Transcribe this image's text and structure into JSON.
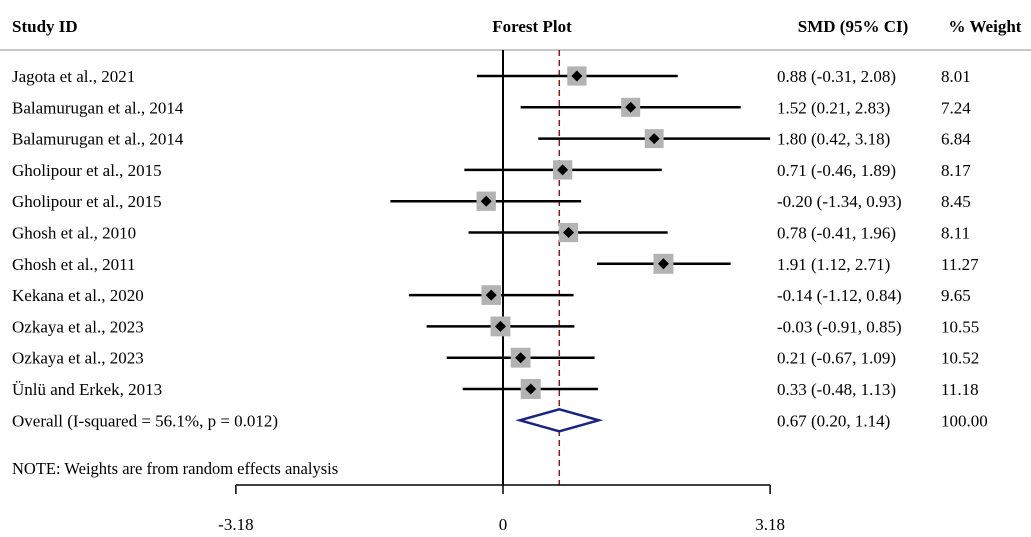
{
  "headers": {
    "study": "Study ID",
    "plot": "Forest Plot",
    "smd": "SMD (95% CI)",
    "weight": "% Weight"
  },
  "note": "NOTE: Weights are from random effects analysis",
  "chart_data": {
    "type": "forest",
    "xticks": [
      -3.18,
      0,
      3.18
    ],
    "xtick_labels": [
      "-3.18",
      "0",
      "3.18"
    ],
    "null_line": 0,
    "studies": [
      {
        "label": "Jagota et al., 2021",
        "smd": 0.88,
        "lo": -0.31,
        "hi": 2.08,
        "ci_text": "0.88 (-0.31, 2.08)",
        "weight": 8.01,
        "weight_text": "8.01"
      },
      {
        "label": "Balamurugan et al., 2014",
        "smd": 1.52,
        "lo": 0.21,
        "hi": 2.83,
        "ci_text": "1.52 (0.21, 2.83)",
        "weight": 7.24,
        "weight_text": "7.24"
      },
      {
        "label": "Balamurugan et al., 2014",
        "smd": 1.8,
        "lo": 0.42,
        "hi": 3.18,
        "ci_text": "1.80 (0.42, 3.18)",
        "weight": 6.84,
        "weight_text": "6.84"
      },
      {
        "label": "Gholipour et al., 2015",
        "smd": 0.71,
        "lo": -0.46,
        "hi": 1.89,
        "ci_text": "0.71 (-0.46, 1.89)",
        "weight": 8.17,
        "weight_text": "8.17"
      },
      {
        "label": "Gholipour et al., 2015",
        "smd": -0.2,
        "lo": -1.34,
        "hi": 0.93,
        "ci_text": "-0.20 (-1.34, 0.93)",
        "weight": 8.45,
        "weight_text": "8.45"
      },
      {
        "label": "Ghosh et al., 2010",
        "smd": 0.78,
        "lo": -0.41,
        "hi": 1.96,
        "ci_text": "0.78 (-0.41, 1.96)",
        "weight": 8.11,
        "weight_text": "8.11"
      },
      {
        "label": "Ghosh et al., 2011",
        "smd": 1.91,
        "lo": 1.12,
        "hi": 2.71,
        "ci_text": "1.91 (1.12, 2.71)",
        "weight": 11.27,
        "weight_text": "11.27"
      },
      {
        "label": "Kekana et al., 2020",
        "smd": -0.14,
        "lo": -1.12,
        "hi": 0.84,
        "ci_text": "-0.14 (-1.12, 0.84)",
        "weight": 9.65,
        "weight_text": "9.65"
      },
      {
        "label": "Ozkaya et al., 2023",
        "smd": -0.03,
        "lo": -0.91,
        "hi": 0.85,
        "ci_text": "-0.03 (-0.91, 0.85)",
        "weight": 10.55,
        "weight_text": "10.55"
      },
      {
        "label": "Ozkaya et al., 2023",
        "smd": 0.21,
        "lo": -0.67,
        "hi": 1.09,
        "ci_text": "0.21 (-0.67, 1.09)",
        "weight": 10.52,
        "weight_text": "10.52"
      },
      {
        "label": "Ünlü and Erkek, 2013",
        "smd": 0.33,
        "lo": -0.48,
        "hi": 1.13,
        "ci_text": "0.33 (-0.48, 1.13)",
        "weight": 11.18,
        "weight_text": "11.18"
      }
    ],
    "overall": {
      "label": "Overall  (I-squared = 56.1%, p = 0.012)",
      "smd": 0.67,
      "lo": 0.2,
      "hi": 1.14,
      "ci_text": "0.67 (0.20, 1.14)",
      "weight": 100.0,
      "weight_text": "100.00"
    },
    "colors": {
      "ci_line": "#000000",
      "weight_box": "#b3b3b3",
      "point": "#000000",
      "overall_diamond": "#1a237e",
      "overall_line": "#8b1a1a",
      "header_rule": "#c8c8c8"
    }
  }
}
